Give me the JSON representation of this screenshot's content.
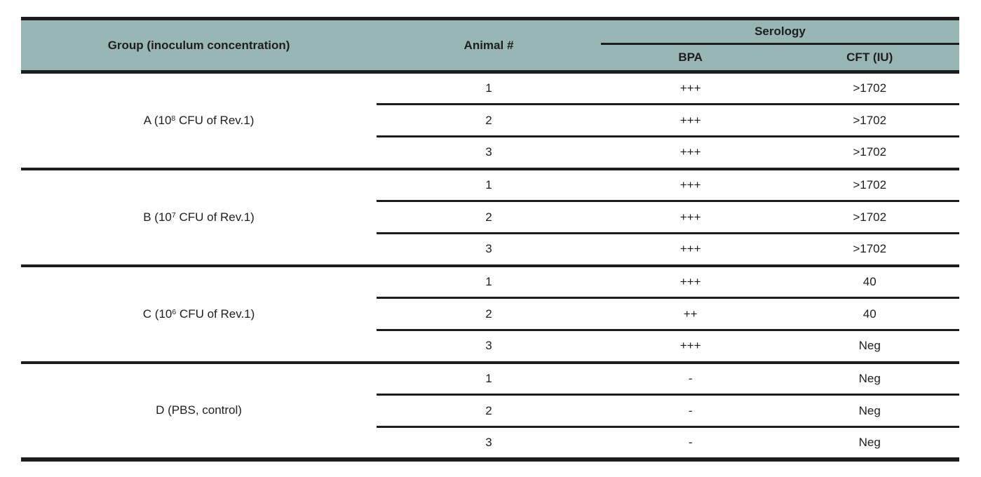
{
  "colors": {
    "header_bg": "#97b6b4",
    "line": "#1d1d1b",
    "text": "#1e1e1e"
  },
  "table": {
    "headers": {
      "group": "Group (inoculum concentration)",
      "animal": "Animal #",
      "serology": "Serology",
      "bpa": "BPA",
      "cft": "CFT (IU)"
    },
    "groups": [
      {
        "label_prefix": "A (10",
        "label_sup": "8",
        "label_suffix": " CFU of Rev.1)",
        "rows": [
          {
            "animal": "1",
            "bpa": "+++",
            "cft": ">1702"
          },
          {
            "animal": "2",
            "bpa": "+++",
            "cft": ">1702"
          },
          {
            "animal": "3",
            "bpa": "+++",
            "cft": ">1702"
          }
        ]
      },
      {
        "label_prefix": "B (10",
        "label_sup": "7",
        "label_suffix": " CFU of Rev.1)",
        "rows": [
          {
            "animal": "1",
            "bpa": "+++",
            "cft": ">1702"
          },
          {
            "animal": "2",
            "bpa": "+++",
            "cft": ">1702"
          },
          {
            "animal": "3",
            "bpa": "+++",
            "cft": ">1702"
          }
        ]
      },
      {
        "label_prefix": "C (10",
        "label_sup": "6",
        "label_suffix": " CFU of Rev.1)",
        "rows": [
          {
            "animal": "1",
            "bpa": "+++",
            "cft": "40"
          },
          {
            "animal": "2",
            "bpa": "++",
            "cft": "40"
          },
          {
            "animal": "3",
            "bpa": "+++",
            "cft": "Neg"
          }
        ]
      },
      {
        "label_prefix": "D (PBS, control)",
        "label_sup": "",
        "label_suffix": "",
        "rows": [
          {
            "animal": "1",
            "bpa": "-",
            "cft": "Neg"
          },
          {
            "animal": "2",
            "bpa": "-",
            "cft": "Neg"
          },
          {
            "animal": "3",
            "bpa": "-",
            "cft": "Neg"
          }
        ]
      }
    ]
  }
}
